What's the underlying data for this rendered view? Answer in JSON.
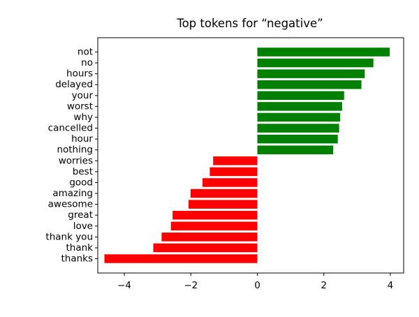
{
  "chart_data": {
    "type": "bar",
    "orientation": "horizontal",
    "title": "Top tokens for “negative”",
    "xlabel": "",
    "ylabel": "",
    "xlim": [
      -4.8,
      4.4
    ],
    "x_ticks": [
      -4,
      -2,
      0,
      2,
      4
    ],
    "x_tick_labels": [
      "−4",
      "−2",
      "0",
      "2",
      "4"
    ],
    "grid": false,
    "legend": "none",
    "categories": [
      "not",
      "no",
      "hours",
      "delayed",
      "your",
      "worst",
      "why",
      "cancelled",
      "hour",
      "nothing",
      "worries",
      "best",
      "good",
      "amazing",
      "awesome",
      "great",
      "love",
      "thank you",
      "thank",
      "thanks"
    ],
    "values": [
      3.98,
      3.49,
      3.23,
      3.13,
      2.61,
      2.55,
      2.49,
      2.46,
      2.42,
      2.28,
      -1.33,
      -1.43,
      -1.65,
      -2.01,
      -2.07,
      -2.55,
      -2.6,
      -2.88,
      -3.13,
      -4.6
    ],
    "colors": {
      "positive": "#008000",
      "negative": "#ff0000"
    }
  }
}
